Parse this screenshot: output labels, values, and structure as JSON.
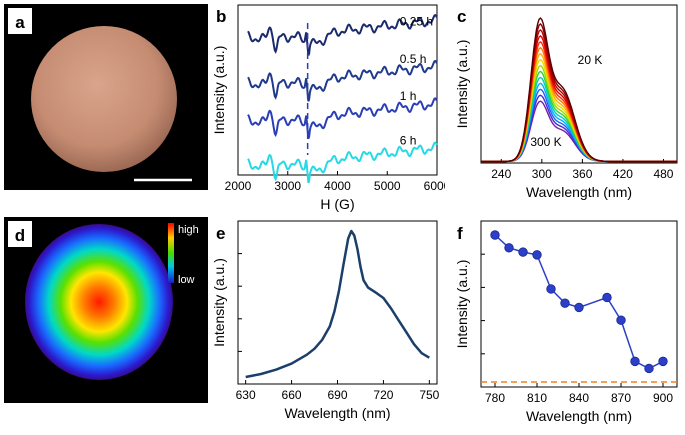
{
  "figure": {
    "panel_letters": [
      "a",
      "b",
      "c",
      "d",
      "e",
      "f"
    ]
  },
  "panel_d": {
    "high_label": "high",
    "low_label": "low"
  },
  "chart_data": [
    {
      "id": "b",
      "type": "line",
      "xlabel": "H (G)",
      "ylabel": "Intensity (a.u.)",
      "xlim": [
        2000,
        6000
      ],
      "xticks": [
        2000,
        3000,
        4000,
        5000,
        6000
      ],
      "series": [
        {
          "name": "0.25 h",
          "color": "#1a2a6c",
          "offset": 0.78
        },
        {
          "name": "0.5 h",
          "color": "#1f3a8c",
          "offset": 0.56
        },
        {
          "name": "1 h",
          "color": "#2a3fb5",
          "offset": 0.34
        },
        {
          "name": "6 h",
          "color": "#27d8e6",
          "offset": 0.08
        }
      ]
    },
    {
      "id": "c",
      "type": "line",
      "xlabel": "Wavelength (nm)",
      "ylabel": "Intensity (a.u.)",
      "xlim": [
        210,
        500
      ],
      "xticks": [
        240,
        300,
        360,
        420,
        480
      ],
      "annotations": [
        "20 K",
        "300 K"
      ],
      "series_count": 15,
      "peak_nm": 296,
      "shoulder_nm": 330,
      "peak_amplitude_range": [
        0.42,
        1.0
      ],
      "colors": [
        "#5a0000",
        "#8b0000",
        "#b80000",
        "#e00000",
        "#ff2a00",
        "#ff7700",
        "#ffb000",
        "#e6e000",
        "#9cdc00",
        "#30d040",
        "#00d0b0",
        "#00b0ff",
        "#2060ff",
        "#4030d0",
        "#7a1fa8"
      ]
    },
    {
      "id": "e",
      "type": "line",
      "xlabel": "Wavelength (nm)",
      "ylabel": "Intensity (a.u.)",
      "xlim": [
        625,
        755
      ],
      "xticks": [
        630,
        660,
        690,
        720,
        750
      ],
      "color": "#1b3f6a",
      "x": [
        630,
        640,
        650,
        660,
        670,
        675,
        680,
        685,
        688,
        691,
        694,
        697,
        699,
        701,
        703,
        705,
        707,
        710,
        713,
        716,
        720,
        725,
        730,
        735,
        740,
        745,
        750
      ],
      "y": [
        0.02,
        0.04,
        0.07,
        0.11,
        0.17,
        0.21,
        0.27,
        0.36,
        0.46,
        0.6,
        0.78,
        0.95,
        1.0,
        0.97,
        0.88,
        0.76,
        0.67,
        0.62,
        0.6,
        0.58,
        0.55,
        0.48,
        0.4,
        0.32,
        0.24,
        0.18,
        0.15
      ]
    },
    {
      "id": "f",
      "type": "scatter",
      "xlabel": "Wavelength (nm)",
      "ylabel": "Intensity (a.u.)",
      "xlim": [
        770,
        910
      ],
      "xticks": [
        780,
        810,
        840,
        870,
        900
      ],
      "color": "#2b3fc8",
      "baseline_color": "#f08020",
      "baseline": 0.02,
      "x": [
        780,
        790,
        800,
        810,
        820,
        830,
        840,
        860,
        870,
        880,
        890,
        900
      ],
      "y": [
        1.0,
        0.91,
        0.88,
        0.86,
        0.62,
        0.52,
        0.49,
        0.56,
        0.4,
        0.11,
        0.06,
        0.11
      ]
    }
  ]
}
